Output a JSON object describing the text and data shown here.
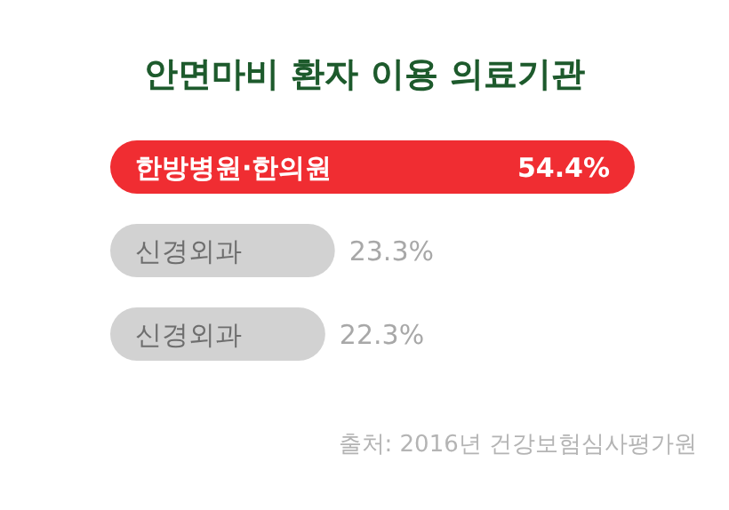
{
  "chart_data": {
    "type": "bar",
    "orientation": "horizontal",
    "title": "안면마비 환자 이용 의료기관",
    "categories": [
      "한방병원·한의원",
      "신경외과",
      "신경외과"
    ],
    "values": [
      54.4,
      23.3,
      22.3
    ],
    "value_labels": [
      "54.4%",
      "23.3%",
      "22.3%"
    ],
    "colors": [
      "#f02d32",
      "#d2d2d2",
      "#d2d2d2"
    ],
    "annotations": [
      "출처: 2016년 건강보험심사평가원"
    ]
  }
}
